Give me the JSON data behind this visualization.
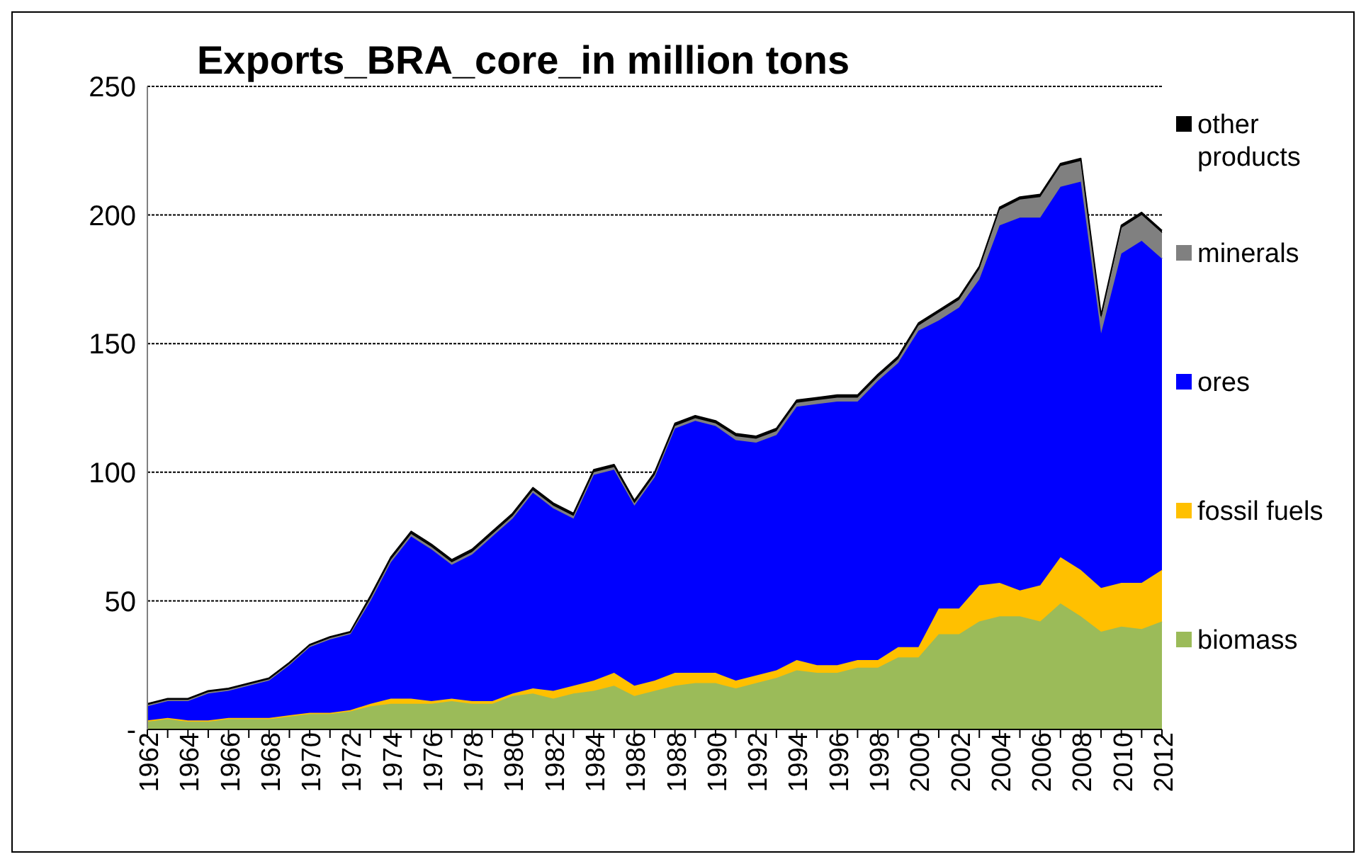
{
  "chart_data": {
    "type": "area",
    "title": "Exports_BRA_core_in million tons",
    "stacked": true,
    "categories": [
      "1962",
      null,
      "1964",
      null,
      "1966",
      null,
      "1968",
      null,
      "1970",
      null,
      "1972",
      null,
      "1974",
      null,
      "1976",
      null,
      "1978",
      null,
      "1980",
      null,
      "1982",
      null,
      "1984",
      null,
      "1986",
      null,
      "1988",
      null,
      "1990",
      null,
      "1992",
      null,
      "1994",
      null,
      "1996",
      null,
      "1998",
      null,
      "2000",
      null,
      "2002",
      null,
      "2004",
      null,
      "2006",
      null,
      "2008",
      null,
      "2010",
      null,
      "2012"
    ],
    "series": [
      {
        "name": "biomass",
        "color": "#9bbb59",
        "values": [
          3,
          4,
          3,
          3,
          4,
          4,
          4,
          5,
          6,
          6,
          7,
          9,
          10,
          10,
          10,
          11,
          10,
          10,
          13,
          14,
          12,
          14,
          15,
          17,
          13,
          15,
          17,
          18,
          18,
          16,
          18,
          20,
          23,
          22,
          22,
          24,
          24,
          28,
          28,
          37,
          37,
          42,
          44,
          44,
          42,
          49,
          44,
          38,
          40,
          39,
          42
        ]
      },
      {
        "name": "fossil fuels",
        "color": "#ffc000",
        "values": [
          0.5,
          0.5,
          0.5,
          0.5,
          0.5,
          0.5,
          0.5,
          0.5,
          0.5,
          0.5,
          0.5,
          1,
          2,
          2,
          1,
          1,
          1,
          1,
          1,
          2,
          3,
          3,
          4,
          5,
          4,
          4,
          5,
          4,
          4,
          3,
          3,
          3,
          4,
          3,
          3,
          3,
          3,
          4,
          4,
          10,
          10,
          14,
          13,
          10,
          14,
          18,
          18,
          17,
          17,
          18,
          20
        ]
      },
      {
        "name": "ores",
        "color": "#0000ff",
        "values": [
          5.5,
          6.5,
          7.5,
          10.5,
          10.5,
          12.5,
          14.5,
          19.5,
          25.5,
          28.5,
          29.5,
          40,
          53,
          63,
          59,
          52,
          57,
          64,
          68,
          76,
          71,
          65,
          80,
          79,
          70,
          79,
          95,
          98,
          96,
          93.5,
          90.5,
          91.5,
          98.5,
          101.5,
          102.5,
          100.5,
          108.5,
          110.5,
          123,
          112,
          117,
          119,
          139,
          145,
          143,
          144,
          151,
          99,
          128,
          133,
          121
        ]
      },
      {
        "name": "minerals",
        "color": "#808080",
        "values": [
          0.5,
          0.5,
          0.5,
          0.5,
          0.5,
          0.5,
          0.5,
          0.5,
          0.5,
          0.5,
          0.5,
          1,
          1,
          1,
          1,
          1,
          1,
          1,
          1,
          1,
          1,
          1,
          1,
          1,
          1,
          1,
          1,
          1,
          1,
          1.5,
          1.5,
          1.5,
          1.5,
          1.5,
          1.5,
          1.5,
          1.5,
          1.5,
          2,
          3,
          3,
          4,
          6,
          7,
          8,
          8,
          8,
          6,
          10,
          10,
          10
        ]
      },
      {
        "name": "other products",
        "color": "#000000",
        "values": [
          0.5,
          0.5,
          0.5,
          0.5,
          0.5,
          0.5,
          0.5,
          0.5,
          0.5,
          0.5,
          0.5,
          1,
          1,
          1,
          1,
          1,
          1,
          1,
          1,
          1,
          1,
          1,
          1,
          1,
          1,
          1,
          1,
          1,
          1,
          1,
          1,
          1,
          1,
          1,
          1,
          1,
          1,
          1,
          1,
          1,
          1,
          1,
          1,
          1,
          1,
          1,
          1,
          1,
          1,
          1,
          1
        ]
      }
    ],
    "ylim": [
      0,
      250
    ],
    "yticks": [
      {
        "value": 0,
        "label": "-"
      },
      50,
      100,
      150,
      200,
      250
    ],
    "grid": "y",
    "legend": "right"
  }
}
